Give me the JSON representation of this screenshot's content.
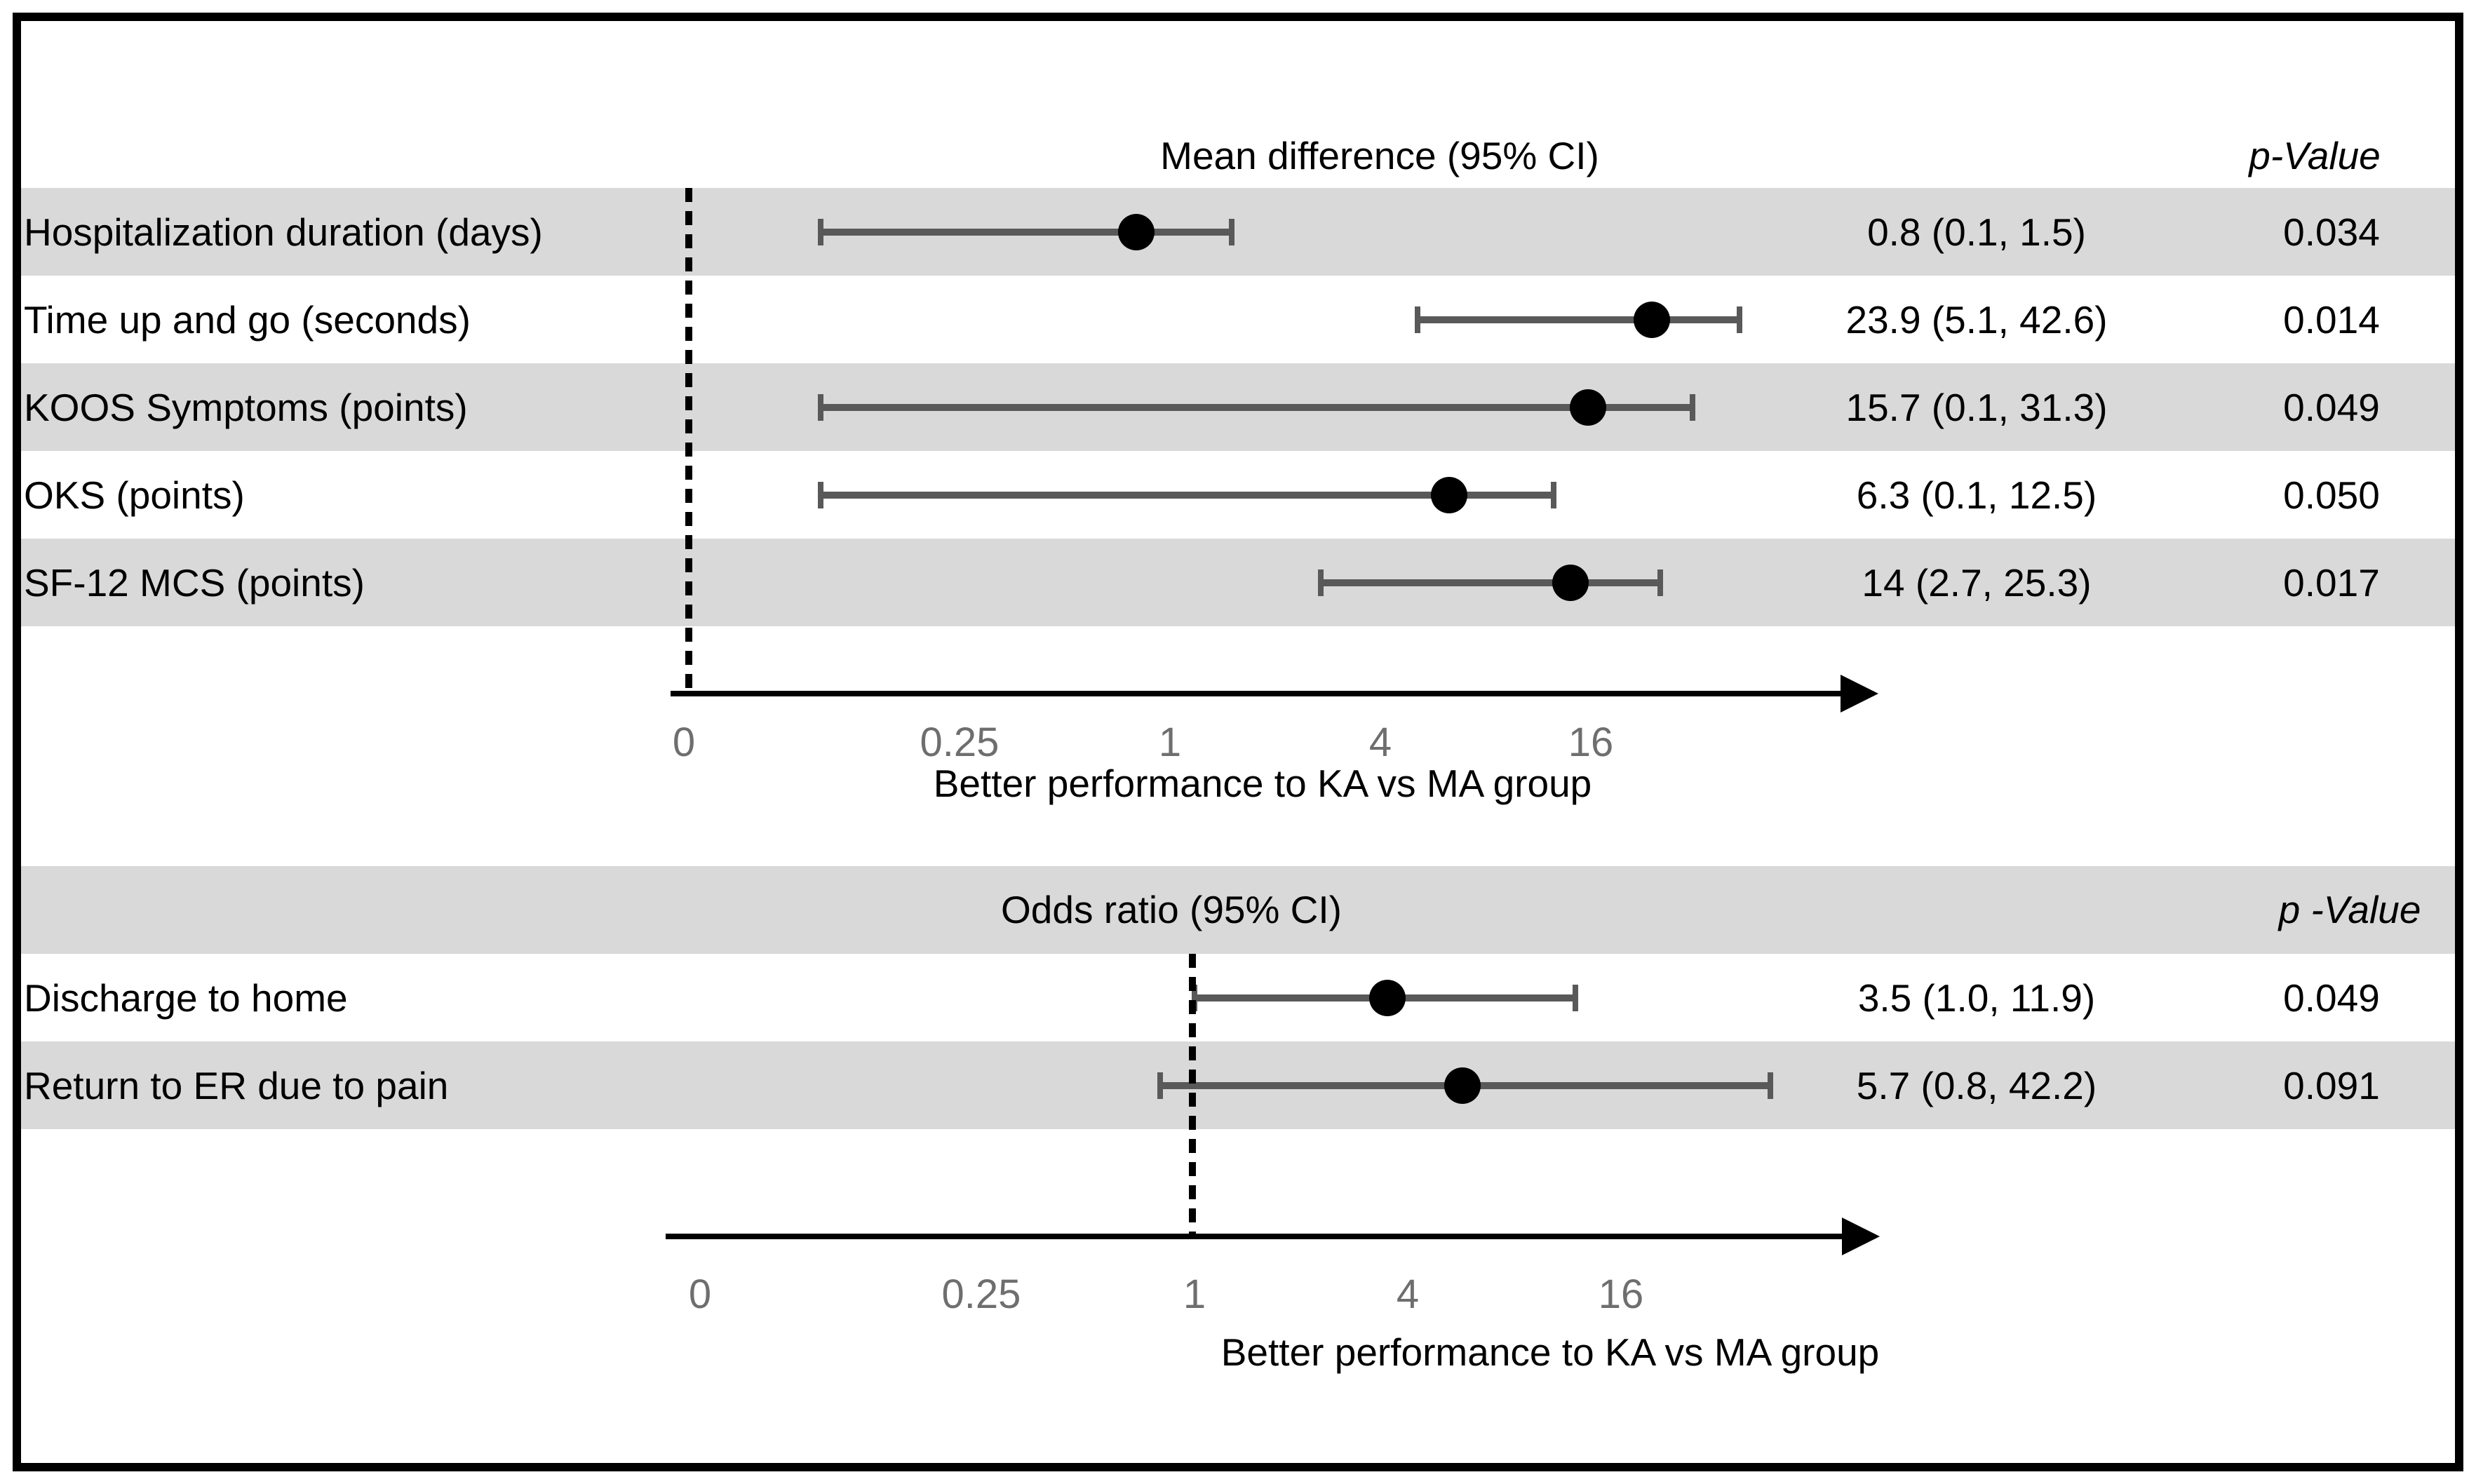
{
  "figure": {
    "band_color": "#d9d9d9",
    "errorbar_color": "#595959",
    "marker_color": "#000000",
    "tick_color": "#6e6e6e",
    "border_color": "#000000"
  },
  "chart_data": [
    {
      "type": "scatter",
      "variant": "forest-plot",
      "title": "Mean difference (95% CI)",
      "p_header": "p-Value",
      "rows": [
        {
          "label": "Hospitalization duration (days)",
          "estimate": 0.8,
          "ci_low": 0.1,
          "ci_high": 1.5,
          "ci_text": "0.8 (0.1, 1.5)",
          "p_value": "0.034"
        },
        {
          "label": "Time up and go (seconds)",
          "estimate": 23.9,
          "ci_low": 5.1,
          "ci_high": 42.6,
          "ci_text": "23.9 (5.1, 42.6)",
          "p_value": "0.014"
        },
        {
          "label": "KOOS Symptoms (points)",
          "estimate": 15.7,
          "ci_low": 0.1,
          "ci_high": 31.3,
          "ci_text": "15.7 (0.1, 31.3)",
          "p_value": "0.049"
        },
        {
          "label": "OKS (points)",
          "estimate": 6.3,
          "ci_low": 0.1,
          "ci_high": 12.5,
          "ci_text": "6.3 (0.1, 12.5)",
          "p_value": "0.050"
        },
        {
          "label": "SF-12 MCS (points)",
          "estimate": 14,
          "ci_low": 2.7,
          "ci_high": 25.3,
          "ci_text": "14 (2.7, 25.3)",
          "p_value": "0.017"
        }
      ],
      "x_axis": {
        "ticks": [
          "0",
          "0.25",
          "1",
          "4",
          "16"
        ],
        "scale": "log4 with zero break",
        "label": "Better performance to KA vs MA group",
        "null_line_value": 0
      },
      "legend": "none",
      "grid": "off"
    },
    {
      "type": "scatter",
      "variant": "forest-plot",
      "title": "Odds ratio (95% CI)",
      "p_header": "p -Value",
      "rows": [
        {
          "label": "Discharge to home",
          "estimate": 3.5,
          "ci_low": 1.0,
          "ci_high": 11.9,
          "ci_text": "3.5 (1.0, 11.9)",
          "p_value": "0.049"
        },
        {
          "label": "Return to ER due to pain",
          "estimate": 5.7,
          "ci_low": 0.8,
          "ci_high": 42.2,
          "ci_text": "5.7 (0.8, 42.2)",
          "p_value": "0.091"
        }
      ],
      "x_axis": {
        "ticks": [
          "0",
          "0.25",
          "1",
          "4",
          "16"
        ],
        "scale": "log4 with zero break",
        "label": "Better performance to KA vs MA group",
        "null_line_value": 1
      },
      "legend": "none",
      "grid": "off"
    }
  ]
}
